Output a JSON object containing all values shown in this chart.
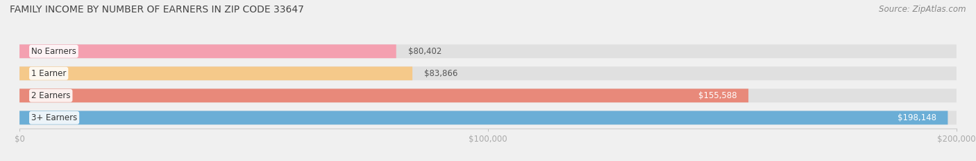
{
  "title": "FAMILY INCOME BY NUMBER OF EARNERS IN ZIP CODE 33647",
  "source": "Source: ZipAtlas.com",
  "categories": [
    "No Earners",
    "1 Earner",
    "2 Earners",
    "3+ Earners"
  ],
  "values": [
    80402,
    83866,
    155588,
    198148
  ],
  "bar_colors": [
    "#f4a0b0",
    "#f5c98a",
    "#e8897a",
    "#6baed6"
  ],
  "label_colors": [
    "#555555",
    "#555555",
    "#ffffff",
    "#ffffff"
  ],
  "value_labels": [
    "$80,402",
    "$83,866",
    "$155,588",
    "$198,148"
  ],
  "xlim": [
    0,
    200000
  ],
  "xticks": [
    0,
    100000,
    200000
  ],
  "xtick_labels": [
    "$0",
    "$100,000",
    "$200,000"
  ],
  "background_color": "#f0f0f0",
  "bar_background_color": "#e0e0e0",
  "title_fontsize": 10,
  "source_fontsize": 8.5,
  "label_fontsize": 8.5,
  "value_fontsize": 8.5,
  "tick_fontsize": 8.5,
  "bar_height": 0.62
}
